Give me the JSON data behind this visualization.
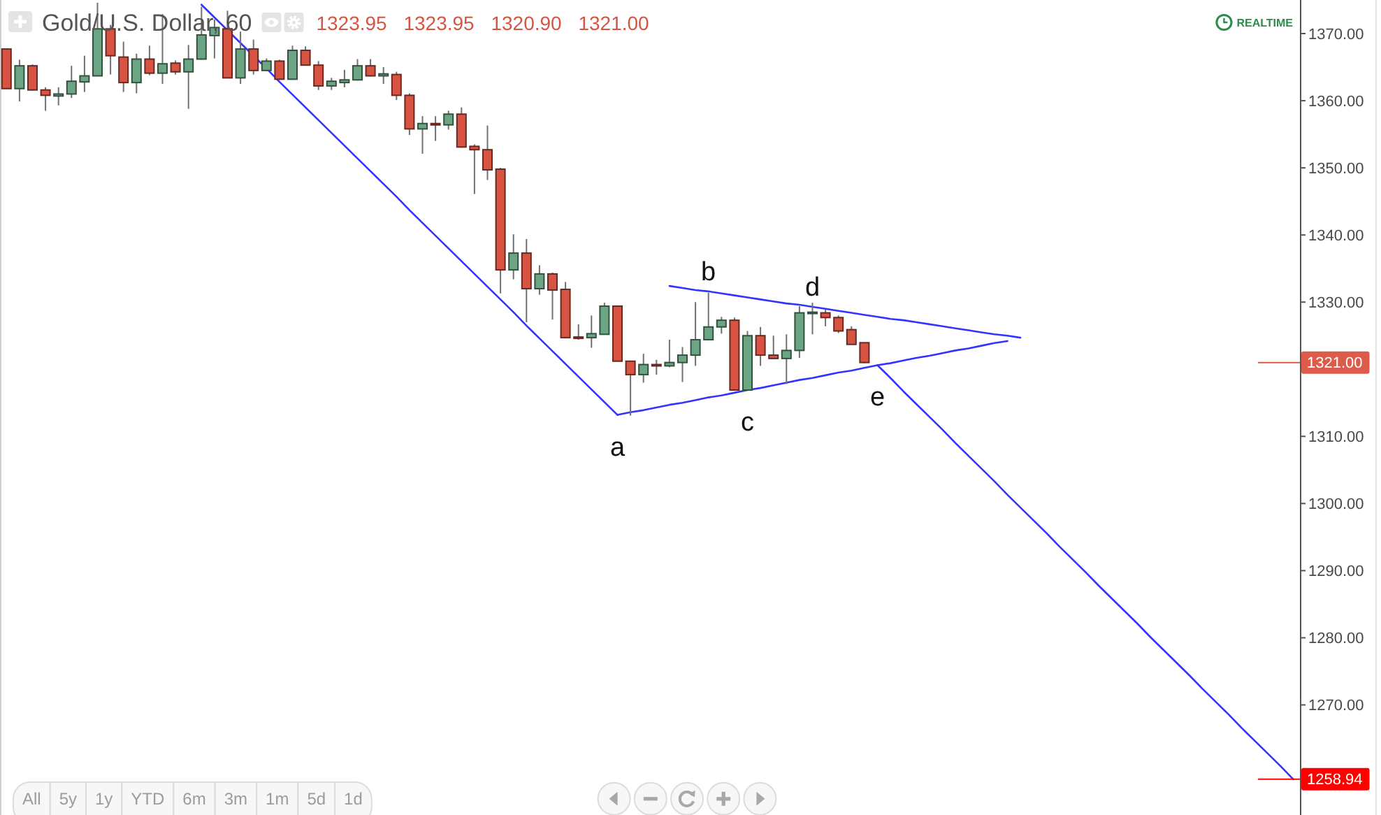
{
  "chart_data": {
    "type": "candlestick",
    "title": "Gold/U.S. Dollar, 60",
    "subtitle": "1323.95 1323.95 1320.90 1321.00",
    "annotations": [
      "REALTIME",
      "All",
      "5y",
      "1y",
      "YTD",
      "6m",
      "3m",
      "1m",
      "5d",
      "1d"
    ],
    "tick_labels": "y",
    "categories": [
      null,
      null,
      null,
      null,
      null,
      null,
      null,
      null,
      null,
      null,
      null,
      null,
      null,
      null,
      null,
      null,
      null,
      null,
      null,
      null,
      null,
      null,
      null,
      null,
      null,
      null,
      null,
      null,
      null,
      null,
      null,
      null,
      null,
      null,
      null,
      null,
      null,
      null,
      null,
      null,
      null,
      null,
      null,
      null,
      null,
      null,
      null,
      null,
      null,
      null,
      null,
      null,
      null,
      null,
      null,
      null,
      null,
      null,
      null,
      null,
      null,
      null,
      null,
      null,
      null,
      null,
      null,
      null,
      null,
      null,
      null,
      null,
      null,
      null,
      null,
      null,
      null,
      null,
      null,
      null,
      null,
      null,
      null,
      null,
      null,
      null,
      null,
      null,
      null,
      null,
      null,
      null,
      null,
      null,
      null,
      null,
      null,
      null,
      null,
      null
    ],
    "ohlc": [
      [
        1367.7,
        1367.7,
        1361.8,
        1361.8
      ],
      [
        1361.8,
        1366.1,
        1359.9,
        1365.2
      ],
      [
        1365.2,
        1365.4,
        1361.5,
        1361.6
      ],
      [
        1361.6,
        1362.0,
        1358.5,
        1360.8
      ],
      [
        1360.7,
        1362.0,
        1359.3,
        1361.0
      ],
      [
        1361.0,
        1365.2,
        1360.4,
        1362.9
      ],
      [
        1362.8,
        1366.7,
        1361.3,
        1363.7
      ],
      [
        1363.7,
        1374.6,
        1363.7,
        1370.7
      ],
      [
        1370.7,
        1371.3,
        1363.9,
        1366.7
      ],
      [
        1366.5,
        1368.8,
        1361.3,
        1362.7
      ],
      [
        1362.7,
        1367.0,
        1361.1,
        1366.2
      ],
      [
        1366.2,
        1368.2,
        1363.8,
        1364.1
      ],
      [
        1364.1,
        1372.9,
        1362.5,
        1365.5
      ],
      [
        1365.6,
        1366.0,
        1363.9,
        1364.3
      ],
      [
        1364.3,
        1368.3,
        1358.8,
        1366.2
      ],
      [
        1366.2,
        1374.0,
        1366.1,
        1369.8
      ],
      [
        1369.7,
        1372.1,
        1366.3,
        1370.9
      ],
      [
        1370.7,
        1373.4,
        1363.4,
        1363.4
      ],
      [
        1363.4,
        1370.3,
        1362.5,
        1367.7
      ],
      [
        1367.7,
        1369.1,
        1363.9,
        1364.5
      ],
      [
        1364.5,
        1366.3,
        1364.4,
        1365.9
      ],
      [
        1365.9,
        1366.1,
        1363.1,
        1363.2
      ],
      [
        1363.2,
        1368.2,
        1363.1,
        1367.5
      ],
      [
        1367.5,
        1368.1,
        1365.2,
        1365.3
      ],
      [
        1365.3,
        1365.9,
        1361.6,
        1362.2
      ],
      [
        1362.2,
        1363.4,
        1361.6,
        1362.9
      ],
      [
        1362.7,
        1364.6,
        1362.0,
        1363.1
      ],
      [
        1363.1,
        1366.2,
        1363.0,
        1365.2
      ],
      [
        1365.2,
        1366.2,
        1363.6,
        1363.7
      ],
      [
        1363.7,
        1365.0,
        1362.5,
        1364.0
      ],
      [
        1363.9,
        1364.3,
        1360.1,
        1360.8
      ],
      [
        1360.8,
        1361.1,
        1354.9,
        1355.8
      ],
      [
        1355.8,
        1357.7,
        1352.1,
        1356.6
      ],
      [
        1356.6,
        1357.7,
        1354.0,
        1356.4
      ],
      [
        1356.4,
        1358.5,
        1355.7,
        1358.0
      ],
      [
        1358.0,
        1359.0,
        1353.0,
        1353.1
      ],
      [
        1353.2,
        1353.5,
        1346.1,
        1352.7
      ],
      [
        1352.7,
        1356.3,
        1348.2,
        1349.7
      ],
      [
        1349.8,
        1350.0,
        1331.3,
        1334.8
      ],
      [
        1334.8,
        1340.1,
        1333.4,
        1337.3
      ],
      [
        1337.3,
        1339.4,
        1327.0,
        1332.0
      ],
      [
        1332.0,
        1335.5,
        1331.1,
        1334.2
      ],
      [
        1334.2,
        1334.4,
        1327.4,
        1331.8
      ],
      [
        1331.9,
        1333.0,
        1324.7,
        1324.7
      ],
      [
        1324.8,
        1326.7,
        1324.4,
        1324.6
      ],
      [
        1324.7,
        1328.0,
        1323.2,
        1325.3
      ],
      [
        1325.2,
        1329.9,
        1325.2,
        1329.4
      ],
      [
        1329.4,
        1329.4,
        1321.2,
        1321.2
      ],
      [
        1321.2,
        1321.2,
        1313.1,
        1319.2
      ],
      [
        1319.2,
        1322.3,
        1318.0,
        1320.7
      ],
      [
        1320.7,
        1321.4,
        1319.2,
        1320.6
      ],
      [
        1320.5,
        1324.4,
        1320.3,
        1321.0
      ],
      [
        1321.0,
        1323.3,
        1318.1,
        1322.1
      ],
      [
        1322.1,
        1330.0,
        1320.5,
        1324.4
      ],
      [
        1324.4,
        1331.4,
        1324.4,
        1326.3
      ],
      [
        1326.3,
        1327.8,
        1325.3,
        1327.3
      ],
      [
        1327.3,
        1327.7,
        1316.9,
        1316.9
      ],
      [
        1316.9,
        1325.7,
        1316.9,
        1325.0
      ],
      [
        1325.0,
        1326.3,
        1320.5,
        1322.1
      ],
      [
        1322.1,
        1325.0,
        1321.6,
        1321.6
      ],
      [
        1321.6,
        1325.2,
        1317.8,
        1322.8
      ],
      [
        1322.8,
        1329.4,
        1321.7,
        1328.4
      ],
      [
        1328.3,
        1329.9,
        1325.2,
        1328.5
      ],
      [
        1328.4,
        1328.9,
        1326.4,
        1327.7
      ],
      [
        1327.7,
        1328.0,
        1325.4,
        1325.7
      ],
      [
        1325.9,
        1326.4,
        1323.7,
        1323.7
      ],
      [
        1323.95,
        1323.95,
        1320.9,
        1321.0
      ],
      null,
      null,
      null,
      null,
      null,
      null,
      null,
      null,
      null,
      null,
      null,
      null,
      null,
      null,
      null,
      null,
      null,
      null,
      null,
      null,
      null,
      null,
      null,
      null,
      null,
      null,
      null,
      null,
      null,
      null,
      null,
      null,
      null
    ],
    "colors": [
      "#d75442",
      "#6ba583",
      "#d75442",
      "#d75442",
      "#6ba583",
      "#6ba583",
      "#6ba583",
      "#6ba583",
      "#d75442",
      "#d75442",
      "#6ba583",
      "#d75442",
      "#6ba583",
      "#d75442",
      "#6ba583",
      "#6ba583",
      "#6ba583",
      "#d75442",
      "#6ba583",
      "#d75442",
      "#6ba583",
      "#d75442",
      "#6ba583",
      "#d75442",
      "#d75442",
      "#6ba583",
      "#6ba583",
      "#6ba583",
      "#d75442",
      "#6ba583",
      "#d75442",
      "#d75442",
      "#6ba583",
      "#d75442",
      "#6ba583",
      "#d75442",
      "#d75442",
      "#d75442",
      "#d75442",
      "#6ba583",
      "#d75442",
      "#6ba583",
      "#d75442",
      "#d75442",
      "#d75442",
      "#6ba583",
      "#6ba583",
      "#d75442",
      "#d75442",
      "#6ba583",
      "#d75442",
      "#6ba583",
      "#6ba583",
      "#6ba583",
      "#6ba583",
      "#6ba583",
      "#d75442",
      "#6ba583",
      "#d75442",
      "#d75442",
      "#6ba583",
      "#6ba583",
      "#6ba583",
      "#d75442",
      "#d75442",
      "#d75442",
      "#d75442",
      null,
      null,
      null,
      null,
      null,
      null,
      null,
      null,
      null,
      null,
      null,
      null,
      null,
      null,
      null,
      null,
      null,
      null,
      null,
      null,
      null,
      null,
      null,
      null,
      null,
      null,
      null,
      null,
      null,
      null,
      null,
      null,
      null
    ],
    "series": [
      {
        "type": "line",
        "color": "#3333ff",
        "values": [
          null,
          null,
          null,
          null,
          null,
          null,
          null,
          null,
          null,
          null,
          null,
          null,
          null,
          null,
          null,
          1374.3,
          1372.4,
          1370.5,
          1368.6,
          1366.7,
          1364.8,
          1362.8,
          1360.9,
          1359.0,
          1357.1,
          1355.2,
          1353.3,
          1351.4,
          1349.5,
          1347.6,
          1345.7,
          1343.7,
          1341.8,
          1339.9,
          1338.0,
          1336.1,
          1334.2,
          1332.3,
          1330.4,
          1328.5,
          1326.5,
          1324.6,
          1322.7,
          1320.8,
          1318.9,
          1317.0,
          1315.1,
          1313.2,
          null,
          null,
          null,
          null,
          null,
          null,
          null,
          null,
          null,
          null,
          null,
          null,
          null,
          null,
          null,
          null,
          null,
          null,
          null,
          null,
          null,
          null,
          null,
          null,
          null,
          null,
          null,
          null,
          null,
          null,
          null,
          null,
          null,
          null,
          null,
          null,
          null,
          null,
          null,
          null,
          null,
          null,
          null,
          null,
          null,
          null,
          null,
          null,
          null,
          null,
          null,
          null
        ]
      },
      {
        "type": "line",
        "color": "#3333ff",
        "values": [
          null,
          null,
          null,
          null,
          null,
          null,
          null,
          null,
          null,
          null,
          null,
          null,
          null,
          null,
          null,
          null,
          null,
          null,
          null,
          null,
          null,
          null,
          null,
          null,
          null,
          null,
          null,
          null,
          null,
          null,
          null,
          null,
          null,
          null,
          null,
          null,
          null,
          null,
          null,
          null,
          null,
          null,
          null,
          null,
          null,
          null,
          null,
          1313.2,
          1313.6,
          1313.9,
          1314.3,
          1314.7,
          1315.0,
          1315.4,
          1315.8,
          1316.1,
          1316.5,
          1316.9,
          1317.2,
          1317.6,
          1318.0,
          1318.4,
          1318.7,
          1319.1,
          1319.5,
          1319.8,
          1320.2,
          1320.6,
          1320.9,
          1321.3,
          1321.7,
          1322.0,
          1322.4,
          1322.8,
          1323.1,
          1323.5,
          1323.9,
          1324.2,
          null,
          null,
          null,
          null,
          null,
          null,
          null,
          null,
          null,
          null,
          null,
          null,
          null,
          null,
          null,
          null,
          null,
          null,
          null,
          null,
          null,
          null
        ],
        "value_labels": [
          null,
          null,
          null,
          null,
          null,
          null,
          null,
          null,
          null,
          null,
          null,
          null,
          null,
          null,
          null,
          null,
          null,
          null,
          null,
          null,
          null,
          null,
          null,
          null,
          null,
          null,
          null,
          null,
          null,
          null,
          null,
          null,
          null,
          null,
          null,
          null,
          null,
          null,
          null,
          null,
          null,
          null,
          null,
          null,
          null,
          null,
          null,
          "a",
          null,
          null,
          null,
          null,
          null,
          null,
          null,
          null,
          null,
          "c",
          null,
          null,
          null,
          null,
          null,
          null,
          null,
          null,
          null,
          "e",
          null,
          null,
          null,
          null,
          null,
          null,
          null,
          null,
          null,
          null,
          null,
          null,
          null,
          null,
          null,
          null,
          null,
          null,
          null,
          null,
          null,
          null,
          null,
          null,
          null,
          null,
          null,
          null,
          null,
          null,
          null,
          null
        ]
      },
      {
        "type": "line",
        "color": "#3333ff",
        "values": [
          null,
          null,
          null,
          null,
          null,
          null,
          null,
          null,
          null,
          null,
          null,
          null,
          null,
          null,
          null,
          null,
          null,
          null,
          null,
          null,
          null,
          null,
          null,
          null,
          null,
          null,
          null,
          null,
          null,
          null,
          null,
          null,
          null,
          null,
          null,
          null,
          null,
          null,
          null,
          null,
          null,
          null,
          null,
          null,
          null,
          null,
          null,
          null,
          null,
          null,
          null,
          1332.4,
          1332.1,
          1331.8,
          1331.6,
          1331.3,
          1331.0,
          1330.7,
          1330.4,
          1330.1,
          1329.8,
          1329.6,
          1329.3,
          1329.0,
          1328.7,
          1328.4,
          1328.1,
          1327.8,
          1327.5,
          1327.3,
          1327.0,
          1326.7,
          1326.4,
          1326.1,
          1325.8,
          1325.5,
          1325.2,
          1325.0,
          1324.7,
          null,
          null,
          null,
          null,
          null,
          null,
          null,
          null,
          null,
          null,
          null,
          null,
          null,
          null,
          null,
          null,
          null,
          null,
          null,
          null,
          null
        ],
        "value_labels": [
          null,
          null,
          null,
          null,
          null,
          null,
          null,
          null,
          null,
          null,
          null,
          null,
          null,
          null,
          null,
          null,
          null,
          null,
          null,
          null,
          null,
          null,
          null,
          null,
          null,
          null,
          null,
          null,
          null,
          null,
          null,
          null,
          null,
          null,
          null,
          null,
          null,
          null,
          null,
          null,
          null,
          null,
          null,
          null,
          null,
          null,
          null,
          null,
          null,
          null,
          null,
          null,
          null,
          null,
          "b",
          null,
          null,
          null,
          null,
          null,
          null,
          null,
          "d",
          null,
          null,
          null,
          null,
          null,
          null,
          null,
          null,
          null,
          null,
          null,
          null,
          null,
          null,
          null,
          null,
          null,
          null,
          null,
          null,
          null,
          null,
          null,
          null,
          null,
          null,
          null,
          null,
          null,
          null,
          null,
          null,
          null,
          null,
          null,
          null,
          null
        ]
      },
      {
        "type": "line",
        "color": "#3333ff",
        "values": [
          null,
          null,
          null,
          null,
          null,
          null,
          null,
          null,
          null,
          null,
          null,
          null,
          null,
          null,
          null,
          null,
          null,
          null,
          null,
          null,
          null,
          null,
          null,
          null,
          null,
          null,
          null,
          null,
          null,
          null,
          null,
          null,
          null,
          null,
          null,
          null,
          null,
          null,
          null,
          null,
          null,
          null,
          null,
          null,
          null,
          null,
          null,
          null,
          null,
          null,
          null,
          null,
          null,
          null,
          null,
          null,
          null,
          null,
          null,
          null,
          null,
          null,
          null,
          null,
          null,
          null,
          null,
          1320.6,
          1318.7,
          1316.7,
          1314.8,
          1312.9,
          1311.0,
          1309.0,
          1307.1,
          1305.2,
          1303.3,
          1301.3,
          1299.4,
          1297.5,
          1295.6,
          1293.6,
          1291.7,
          1289.8,
          1287.8,
          1285.9,
          1284.0,
          1282.1,
          1280.1,
          1278.2,
          1276.3,
          1274.4,
          1272.4,
          1270.5,
          1268.6,
          1266.6,
          1264.7,
          1262.8,
          1260.9,
          1258.9
        ]
      }
    ],
    "ylim": [
      1253.6,
      1375.0
    ],
    "yticks": [
      {
        "value": 1270,
        "label": "1270.00"
      },
      {
        "value": 1280,
        "label": "1280.00"
      },
      {
        "value": 1290,
        "label": "1290.00"
      },
      {
        "value": 1300,
        "label": "1300.00"
      },
      {
        "value": 1310,
        "label": "1310.00"
      },
      {
        "value": 1330,
        "label": "1330.00"
      },
      {
        "value": 1340,
        "label": "1340.00"
      },
      {
        "value": 1350,
        "label": "1350.00"
      },
      {
        "value": 1360,
        "label": "1360.00"
      },
      {
        "value": 1370,
        "label": "1370.00"
      }
    ],
    "ref_lines": [
      {
        "axis": "y",
        "value": 1321,
        "label": "1321.00",
        "color": "#dc5b49"
      },
      {
        "axis": "y",
        "value": 1258.94,
        "label": "1258.94",
        "color": "#ff0000"
      }
    ]
  }
}
